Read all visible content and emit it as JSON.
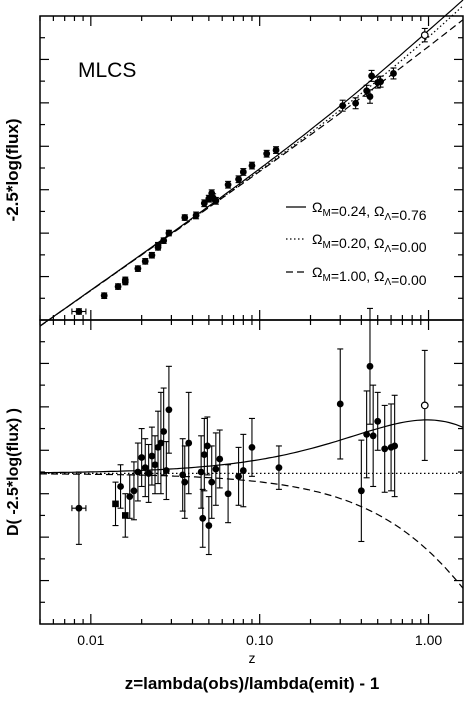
{
  "figure": {
    "top_ylabel": "-2.5*log(flux)",
    "bottom_ylabel": "D( -2.5*log(flux) )",
    "xlabel": "z=lambda(obs)/lambda(emit) - 1",
    "x_small_label": "z",
    "method_label": "MLCS"
  },
  "legend": [
    {
      "style": "solid",
      "om": "0.24",
      "ol": "0.76"
    },
    {
      "style": "dotted",
      "om": "0.20",
      "ol": "0.00"
    },
    {
      "style": "dashed",
      "om": "1.00",
      "ol": "0.00"
    }
  ],
  "chart_data": [
    {
      "type": "scatter",
      "panel": "top",
      "xscale": "log",
      "xlim": [
        0.005,
        1.6
      ],
      "ylim": [
        0,
        100
      ],
      "ylabel": "-2.5*log(flux)",
      "yticks_unlabeled": true,
      "legend_position": "right",
      "series": [
        {
          "kind": "points",
          "x": [
            0.0085,
            0.012,
            0.0145,
            0.016,
            0.016,
            0.019,
            0.021,
            0.023,
            0.025,
            0.025,
            0.027,
            0.029,
            0.036,
            0.042,
            0.047,
            0.05,
            0.052,
            0.053,
            0.055,
            0.065,
            0.075,
            0.08,
            0.09,
            0.11,
            0.125,
            0.31,
            0.37,
            0.43,
            0.45,
            0.46,
            0.5,
            0.52,
            0.62,
            0.95
          ],
          "y": [
            2.8,
            8.0,
            11.0,
            12.5,
            13.2,
            16.9,
            19.3,
            21.3,
            24.6,
            23.9,
            26.1,
            28.6,
            33.7,
            34.4,
            38.4,
            39.9,
            41.7,
            40.2,
            39.2,
            44.5,
            46.3,
            48.7,
            50.8,
            54.7,
            55.9,
            70.5,
            71.3,
            75.4,
            73.5,
            80.3,
            78.1,
            78.4,
            81.1,
            93.7
          ],
          "yerr": [
            0.9,
            0.9,
            0.9,
            0.9,
            0.9,
            0.9,
            0.9,
            0.9,
            0.9,
            0.9,
            0.9,
            0.9,
            0.9,
            1.1,
            1.1,
            1.1,
            1.1,
            1.3,
            1.1,
            1.1,
            1.1,
            1.1,
            1.1,
            1.1,
            1.1,
            1.8,
            1.8,
            1.8,
            2.2,
            1.8,
            1.8,
            1.8,
            1.8,
            2.2
          ],
          "xerr_index": [
            0
          ],
          "open_marker_index": [
            33
          ]
        }
      ]
    },
    {
      "type": "scatter",
      "panel": "bottom",
      "xscale": "log",
      "xlim": [
        0.005,
        1.6
      ],
      "xticks": [
        0.01,
        0.1,
        1.0
      ],
      "xtick_labels": [
        "0.01",
        "0.10",
        "1.00"
      ],
      "xlabel": "z=lambda(obs)/lambda(emit) - 1",
      "ylim": [
        -1.0,
        1.1
      ],
      "ylabel": "D( -2.5*log(flux) )",
      "yticks_unlabeled": true,
      "series": [
        {
          "kind": "points",
          "x": [
            0.0085,
            0.014,
            0.015,
            0.016,
            0.017,
            0.018,
            0.019,
            0.02,
            0.021,
            0.022,
            0.023,
            0.024,
            0.025,
            0.026,
            0.027,
            0.028,
            0.029,
            0.035,
            0.036,
            0.038,
            0.045,
            0.046,
            0.047,
            0.049,
            0.05,
            0.052,
            0.055,
            0.058,
            0.065,
            0.075,
            0.08,
            0.09,
            0.13,
            0.3,
            0.4,
            0.43,
            0.45,
            0.47,
            0.5,
            0.55,
            0.6,
            0.63,
            0.95
          ],
          "y": [
            -0.2,
            -0.17,
            -0.05,
            -0.25,
            -0.12,
            -0.08,
            0.05,
            0.15,
            0.08,
            0.04,
            0.16,
            0.1,
            0.22,
            0.25,
            0.33,
            0.06,
            0.48,
            0.03,
            -0.02,
            0.25,
            0.05,
            -0.27,
            0.17,
            0.23,
            -0.32,
            -0.02,
            0.07,
            0.14,
            -0.1,
            0.02,
            0.06,
            0.22,
            0.08,
            0.52,
            -0.08,
            0.31,
            0.78,
            0.3,
            0.4,
            0.21,
            0.22,
            0.23,
            0.51
          ],
          "yerr": [
            0.25,
            0.15,
            0.15,
            0.15,
            0.15,
            0.2,
            0.2,
            0.2,
            0.2,
            0.2,
            0.2,
            0.2,
            0.25,
            0.35,
            0.3,
            0.2,
            0.3,
            0.25,
            0.25,
            0.35,
            0.25,
            0.2,
            0.25,
            0.2,
            0.2,
            0.25,
            0.25,
            0.2,
            0.2,
            0.2,
            0.25,
            0.2,
            0.15,
            0.38,
            0.35,
            0.3,
            0.4,
            0.35,
            0.2,
            0.3,
            0.3,
            0.35,
            0.38
          ],
          "xerr_index": [
            0
          ],
          "square_marker_index": [
            1,
            3
          ],
          "open_marker_index": [
            42
          ]
        }
      ]
    }
  ]
}
